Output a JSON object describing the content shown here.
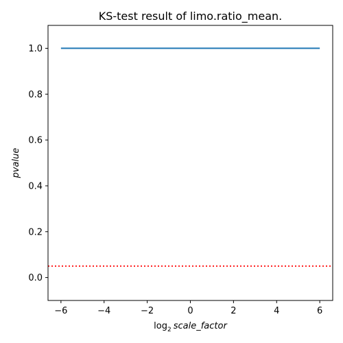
{
  "chart_data": {
    "type": "line",
    "title": "KS-test result of limo.ratio_mean.",
    "xlabel": {
      "log_prefix": "log",
      "log_base": "2",
      "variable": "scale_factor"
    },
    "ylabel": "pvalue",
    "xlim": [
      -6.6,
      6.6
    ],
    "ylim": [
      -0.1,
      1.1
    ],
    "xticks": [
      -6,
      -4,
      -2,
      0,
      2,
      4,
      6
    ],
    "xtick_labels": [
      "−6",
      "−4",
      "−2",
      "0",
      "2",
      "4",
      "6"
    ],
    "yticks": [
      0.0,
      0.2,
      0.4,
      0.6,
      0.8,
      1.0
    ],
    "ytick_labels": [
      "0.0",
      "0.2",
      "0.4",
      "0.6",
      "0.8",
      "1.0"
    ],
    "grid": false,
    "series": [
      {
        "x": [
          -6,
          -5,
          -4,
          -3,
          -2,
          -1,
          0,
          1,
          2,
          3,
          4,
          5,
          6
        ],
        "y": [
          1.0,
          1.0,
          1.0,
          1.0,
          1.0,
          1.0,
          1.0,
          1.0,
          1.0,
          1.0,
          1.0,
          1.0,
          1.0
        ],
        "color": "#1f77b4",
        "style": "solid"
      }
    ],
    "reference_lines": [
      {
        "orientation": "horizontal",
        "y": 0.05,
        "color": "#ff0000",
        "style": "dotted"
      }
    ]
  }
}
